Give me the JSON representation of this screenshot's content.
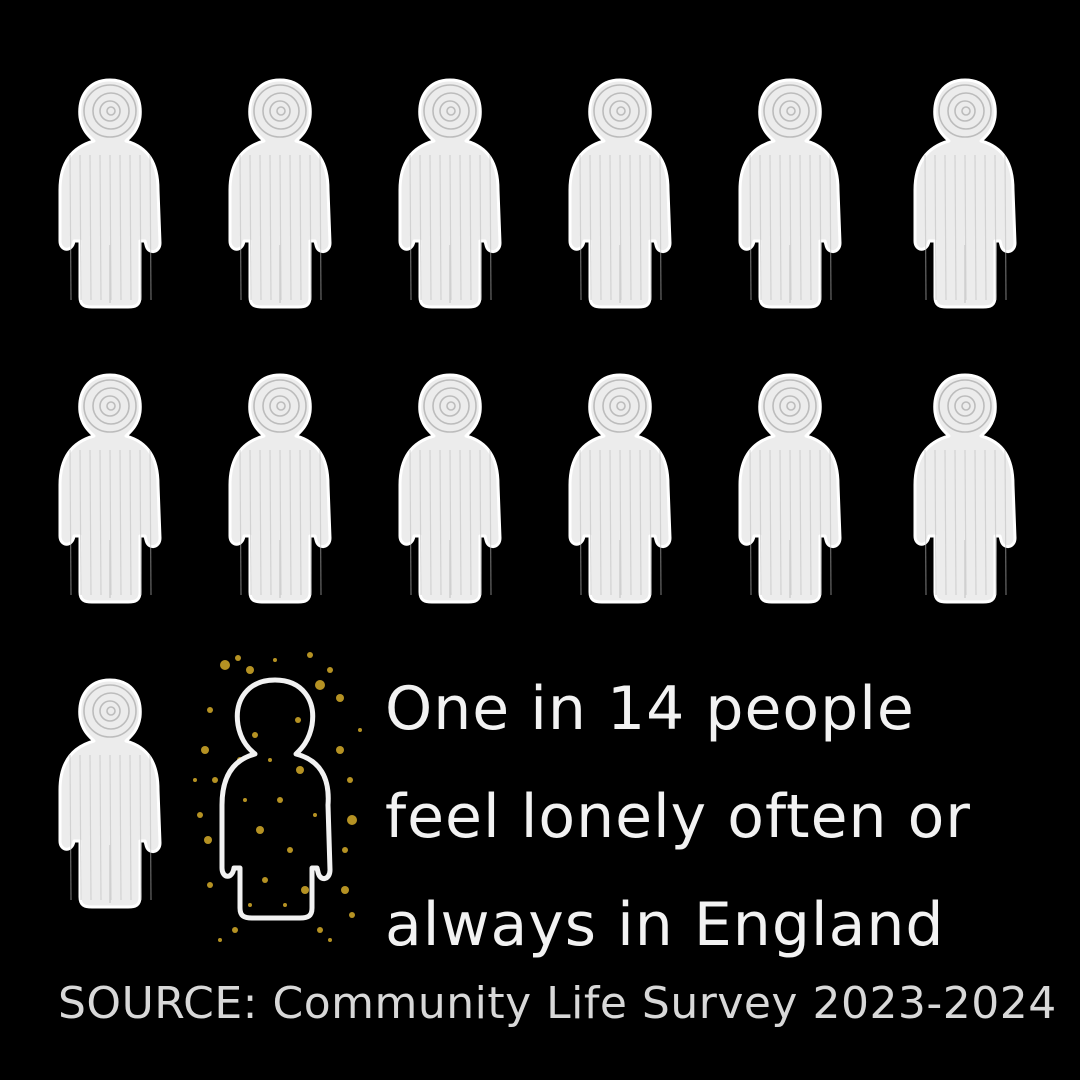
{
  "figure": {
    "total_people": 14,
    "highlighted_people": 1,
    "person_icon": "chalk-person-icon",
    "highlight_icon": "outlined-person-icon",
    "colors": {
      "background": "#000000",
      "chalk": "#f2f2f2",
      "accent": "#c9a227"
    }
  },
  "message": {
    "line1": "One in 14 people",
    "line2": "feel lonely often or",
    "line3": "always in England"
  },
  "source": {
    "text": "SOURCE: Community Life Survey 2023-2024"
  }
}
